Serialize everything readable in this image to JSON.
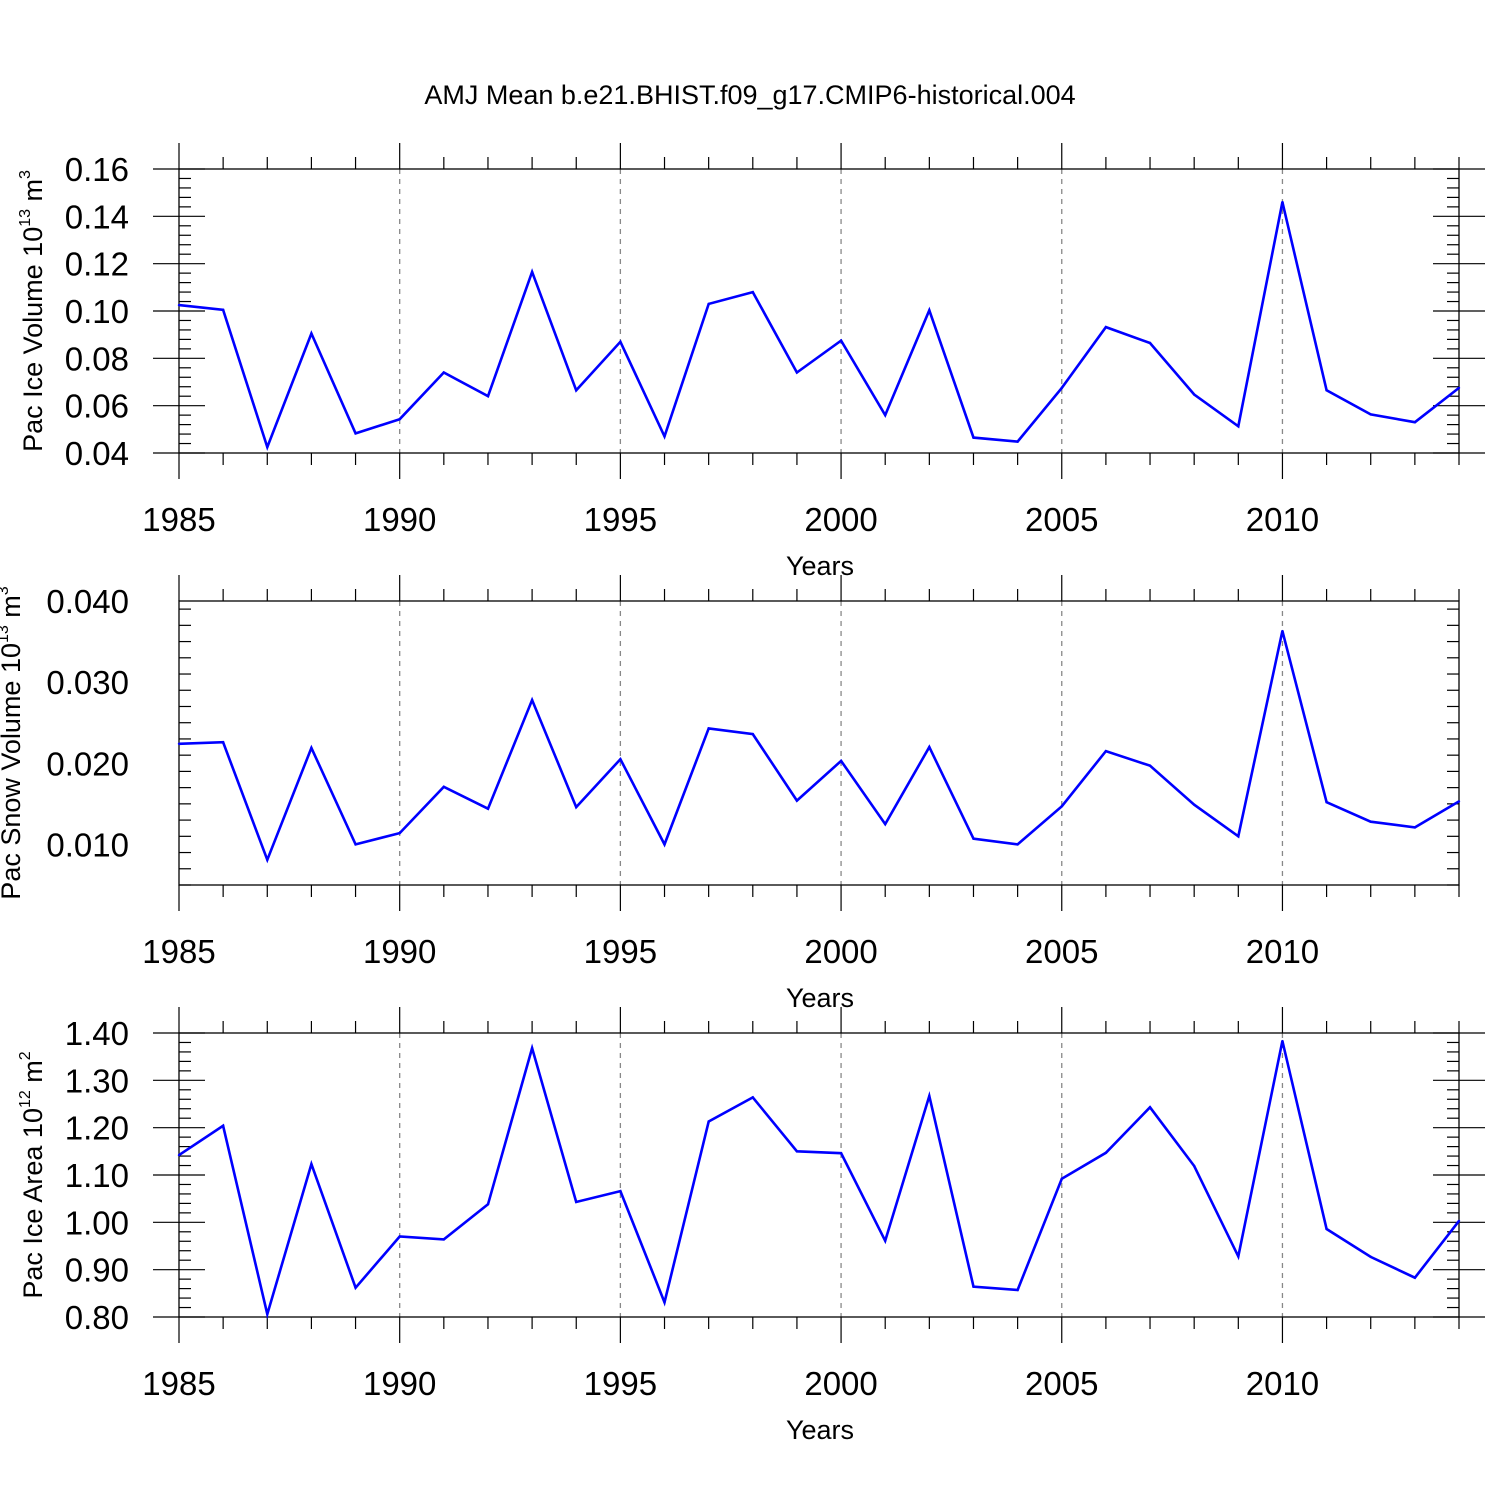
{
  "title": "AMJ Mean b.e21.BHIST.f09_g17.CMIP6-historical.004",
  "colors": {
    "series": "#0000ff",
    "axis": "#000000",
    "grid": "#888888"
  },
  "chart_data": [
    {
      "type": "line",
      "name": "pac-ice-volume",
      "ylabel": {
        "main": "Pac Ice Volume 10",
        "exp": "13",
        "unit": " m",
        "unit_exp": "3"
      },
      "xlabel": "Years",
      "xlim": [
        1985,
        2014
      ],
      "ylim": [
        0.04,
        0.16
      ],
      "xticks": [
        1985,
        1990,
        1995,
        2000,
        2005,
        2010
      ],
      "xtick_labels": [
        "1985",
        "1990",
        "1995",
        "2000",
        "2005",
        "2010"
      ],
      "yticks": [
        0.04,
        0.06,
        0.08,
        0.1,
        0.12,
        0.14,
        0.16
      ],
      "ytick_labels": [
        "0.04",
        "0.06",
        "0.08",
        "0.10",
        "0.12",
        "0.14",
        "0.16"
      ],
      "x": [
        1985,
        1986,
        1987,
        1988,
        1989,
        1990,
        1991,
        1992,
        1993,
        1994,
        1995,
        1996,
        1997,
        1998,
        1999,
        2000,
        2001,
        2002,
        2003,
        2004,
        2005,
        2006,
        2007,
        2008,
        2009,
        2010,
        2011,
        2012,
        2013,
        2014
      ],
      "values": [
        0.1025,
        0.1005,
        0.0425,
        0.0905,
        0.0483,
        0.0543,
        0.074,
        0.064,
        0.1165,
        0.0665,
        0.087,
        0.047,
        0.103,
        0.108,
        0.074,
        0.0875,
        0.056,
        0.1003,
        0.0465,
        0.0448,
        0.0675,
        0.0932,
        0.0865,
        0.0647,
        0.0513,
        0.146,
        0.0665,
        0.0563,
        0.053,
        0.0675
      ]
    },
    {
      "type": "line",
      "name": "pac-snow-volume",
      "ylabel": {
        "main": "Pac Snow Volume 10",
        "exp": "13",
        "unit": " m",
        "unit_exp": "3"
      },
      "xlabel": "Years",
      "xlim": [
        1985,
        2014
      ],
      "ylim": [
        0.005,
        0.04
      ],
      "xticks": [
        1985,
        1990,
        1995,
        2000,
        2005,
        2010
      ],
      "xtick_labels": [
        "1985",
        "1990",
        "1995",
        "2000",
        "2005",
        "2010"
      ],
      "yticks": [
        0.01,
        0.02,
        0.03,
        0.04
      ],
      "ytick_labels": [
        "0.010",
        "0.020",
        "0.030",
        "0.040"
      ],
      "x": [
        1985,
        1986,
        1987,
        1988,
        1989,
        1990,
        1991,
        1992,
        1993,
        1994,
        1995,
        1996,
        1997,
        1998,
        1999,
        2000,
        2001,
        2002,
        2003,
        2004,
        2005,
        2006,
        2007,
        2008,
        2009,
        2010,
        2011,
        2012,
        2013,
        2014
      ],
      "values": [
        0.0224,
        0.0226,
        0.0081,
        0.0219,
        0.01,
        0.0114,
        0.0171,
        0.0144,
        0.0278,
        0.0146,
        0.0205,
        0.01,
        0.0243,
        0.0236,
        0.0154,
        0.0203,
        0.0125,
        0.022,
        0.0107,
        0.01,
        0.0147,
        0.0215,
        0.0197,
        0.0149,
        0.011,
        0.0363,
        0.0152,
        0.0128,
        0.0121,
        0.0153
      ]
    },
    {
      "type": "line",
      "name": "pac-ice-area",
      "ylabel": {
        "main": "Pac Ice Area 10",
        "exp": "12",
        "unit": " m",
        "unit_exp": "2"
      },
      "xlabel": "Years",
      "xlim": [
        1985,
        2014
      ],
      "ylim": [
        0.8,
        1.4
      ],
      "xticks": [
        1985,
        1990,
        1995,
        2000,
        2005,
        2010
      ],
      "xtick_labels": [
        "1985",
        "1990",
        "1995",
        "2000",
        "2005",
        "2010"
      ],
      "yticks": [
        0.8,
        0.9,
        1.0,
        1.1,
        1.2,
        1.3,
        1.4
      ],
      "ytick_labels": [
        "0.80",
        "0.90",
        "1.00",
        "1.10",
        "1.20",
        "1.30",
        "1.40"
      ],
      "x": [
        1985,
        1986,
        1987,
        1988,
        1989,
        1990,
        1991,
        1992,
        1993,
        1994,
        1995,
        1996,
        1997,
        1998,
        1999,
        2000,
        2001,
        2002,
        2003,
        2004,
        2005,
        2006,
        2007,
        2008,
        2009,
        2010,
        2011,
        2012,
        2013,
        2014
      ],
      "values": [
        1.142,
        1.204,
        0.806,
        1.123,
        0.862,
        0.97,
        0.964,
        1.038,
        1.368,
        1.043,
        1.066,
        0.831,
        1.213,
        1.264,
        1.15,
        1.146,
        0.961,
        1.267,
        0.864,
        0.857,
        1.092,
        1.147,
        1.243,
        1.119,
        0.928,
        1.383,
        0.986,
        0.927,
        0.883,
        1.003
      ]
    }
  ]
}
